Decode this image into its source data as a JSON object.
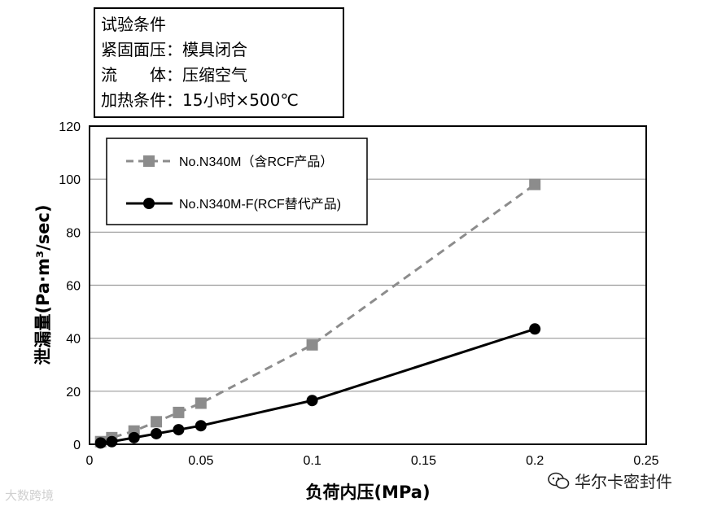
{
  "conditions": {
    "title": "试验条件",
    "lines": [
      "紧固面压：模具闭合",
      "流　　体：压缩空气",
      "加热条件：15小时×500℃"
    ]
  },
  "chart_data": {
    "type": "line",
    "title": "",
    "xlabel": "负荷内压(MPa)",
    "ylabel": "泄漏量(Pa·m³/sec)",
    "xlim": [
      0,
      0.25
    ],
    "ylim": [
      0,
      120
    ],
    "xticks": [
      0,
      0.05,
      0.1,
      0.15,
      0.2,
      0.25
    ],
    "xtick_labels": [
      "0",
      "0.05",
      "0.1",
      "0.15",
      "0.2",
      "0.25"
    ],
    "yticks": [
      0,
      20,
      40,
      60,
      80,
      100,
      120
    ],
    "ytick_labels": [
      "0",
      "20",
      "40",
      "60",
      "80",
      "100",
      "120"
    ],
    "grid": "horizontal",
    "legend": "top-left",
    "series": [
      {
        "name": "No.N340M（含RCF产品）",
        "color": "#8c8c8c",
        "style": "dashed",
        "marker": "square",
        "x": [
          0.005,
          0.01,
          0.02,
          0.03,
          0.04,
          0.05,
          0.1,
          0.2
        ],
        "y": [
          1,
          2.5,
          5,
          8.5,
          12,
          15.5,
          37.5,
          98
        ]
      },
      {
        "name": "No.N340M-F(RCF替代产品)",
        "color": "#000000",
        "style": "solid",
        "marker": "circle",
        "x": [
          0.005,
          0.01,
          0.02,
          0.03,
          0.04,
          0.05,
          0.1,
          0.2
        ],
        "y": [
          0.5,
          1,
          2.5,
          4,
          5.5,
          7,
          16.5,
          43.5
        ]
      }
    ]
  },
  "watermark": {
    "left": "大数跨境",
    "right": "华尔卡密封件",
    "icon": "wechat-icon"
  }
}
